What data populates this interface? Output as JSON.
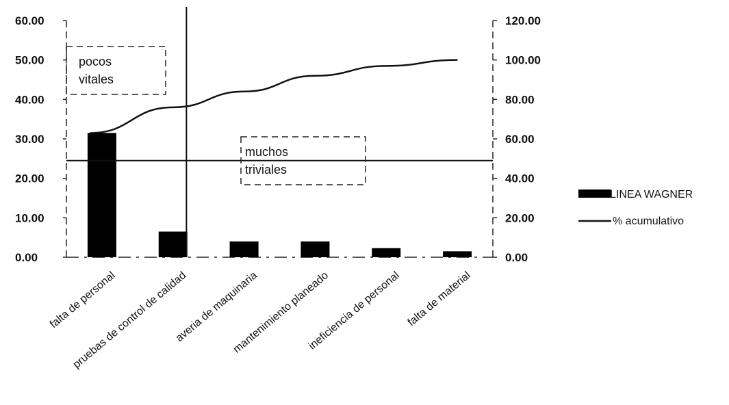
{
  "chart_data": {
    "type": "bar",
    "categories": [
      "falta de personal",
      "pruebas de control de calidad",
      "averia de maquinaria",
      "mantenimiento planeado",
      "ineficiencia de personal",
      "falta de material"
    ],
    "series": [
      {
        "name": "LINEA WAGNER",
        "type": "bar",
        "axis": "left",
        "values": [
          31.5,
          6.5,
          4.0,
          4.0,
          2.3,
          1.5
        ]
      },
      {
        "name": "% acumulativo",
        "type": "line",
        "axis": "right",
        "values": [
          63.0,
          76.0,
          84.0,
          92.0,
          97.0,
          100.0
        ]
      }
    ],
    "y_left": {
      "ylim": [
        0,
        60
      ],
      "ticks": [
        "0.00",
        "10.00",
        "20.00",
        "30.00",
        "40.00",
        "50.00",
        "60.00"
      ]
    },
    "y_right": {
      "ylim": [
        0,
        120
      ],
      "ticks": [
        "0.00",
        "20.00",
        "40.00",
        "60.00",
        "80.00",
        "100.00",
        "120.00"
      ]
    },
    "reference_lines": {
      "horizontal_left_value": 24.5,
      "vertical_between": [
        1,
        2
      ]
    },
    "annotations": [
      {
        "lines": [
          "pocos",
          "vitales"
        ]
      },
      {
        "lines": [
          "muchos",
          "triviales"
        ]
      }
    ],
    "legend_position": "right",
    "grid": false,
    "title": "",
    "xlabel": "",
    "ylabel": ""
  }
}
